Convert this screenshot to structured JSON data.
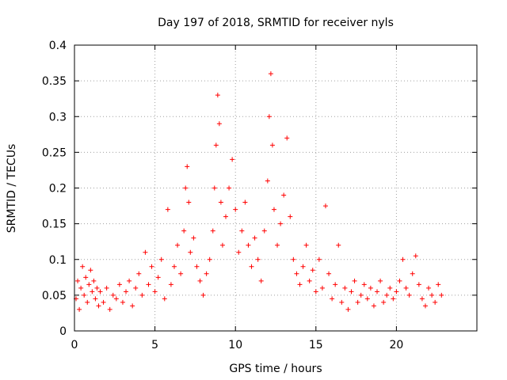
{
  "chart_data": {
    "type": "scatter",
    "title": "Day 197 of 2018, SRMTID for receiver nyls",
    "xlabel": "GPS time / hours",
    "ylabel": "SRMTID / TECUs",
    "xlim": [
      0,
      25
    ],
    "ylim": [
      0,
      0.4
    ],
    "x_ticks": [
      0,
      5,
      10,
      15,
      20
    ],
    "x_tick_labels": [
      "0",
      "5",
      "10",
      "15",
      "20"
    ],
    "y_ticks": [
      0,
      0.05,
      0.1,
      0.15,
      0.2,
      0.25,
      0.3,
      0.35,
      0.4
    ],
    "y_tick_labels": [
      "0",
      "0.05",
      "0.1",
      "0.15",
      "0.2",
      "0.25",
      "0.3",
      "0.35",
      "0.4"
    ],
    "grid": true,
    "marker": "+",
    "marker_color": "#ff0000",
    "series": [
      {
        "points": [
          [
            0.1,
            0.045
          ],
          [
            0.2,
            0.07
          ],
          [
            0.3,
            0.03
          ],
          [
            0.4,
            0.06
          ],
          [
            0.5,
            0.09
          ],
          [
            0.6,
            0.05
          ],
          [
            0.7,
            0.075
          ],
          [
            0.8,
            0.04
          ],
          [
            0.9,
            0.065
          ],
          [
            1.0,
            0.085
          ],
          [
            1.1,
            0.055
          ],
          [
            1.2,
            0.07
          ],
          [
            1.3,
            0.045
          ],
          [
            1.4,
            0.06
          ],
          [
            1.5,
            0.035
          ],
          [
            1.6,
            0.055
          ],
          [
            1.8,
            0.04
          ],
          [
            2.0,
            0.06
          ],
          [
            2.2,
            0.03
          ],
          [
            2.4,
            0.05
          ],
          [
            2.6,
            0.045
          ],
          [
            2.8,
            0.065
          ],
          [
            3.0,
            0.04
          ],
          [
            3.2,
            0.055
          ],
          [
            3.4,
            0.07
          ],
          [
            3.6,
            0.035
          ],
          [
            3.8,
            0.06
          ],
          [
            4.0,
            0.08
          ],
          [
            4.2,
            0.05
          ],
          [
            4.4,
            0.11
          ],
          [
            4.6,
            0.065
          ],
          [
            4.8,
            0.09
          ],
          [
            5.0,
            0.055
          ],
          [
            5.2,
            0.075
          ],
          [
            5.4,
            0.1
          ],
          [
            5.6,
            0.045
          ],
          [
            5.8,
            0.17
          ],
          [
            6.0,
            0.065
          ],
          [
            6.2,
            0.09
          ],
          [
            6.4,
            0.12
          ],
          [
            6.6,
            0.08
          ],
          [
            6.8,
            0.14
          ],
          [
            6.9,
            0.2
          ],
          [
            7.0,
            0.23
          ],
          [
            7.1,
            0.18
          ],
          [
            7.2,
            0.11
          ],
          [
            7.4,
            0.13
          ],
          [
            7.6,
            0.09
          ],
          [
            7.8,
            0.07
          ],
          [
            8.0,
            0.05
          ],
          [
            8.2,
            0.08
          ],
          [
            8.4,
            0.1
          ],
          [
            8.6,
            0.14
          ],
          [
            8.7,
            0.2
          ],
          [
            8.8,
            0.26
          ],
          [
            8.9,
            0.33
          ],
          [
            9.0,
            0.29
          ],
          [
            9.1,
            0.18
          ],
          [
            9.2,
            0.12
          ],
          [
            9.4,
            0.16
          ],
          [
            9.6,
            0.2
          ],
          [
            9.8,
            0.24
          ],
          [
            10.0,
            0.17
          ],
          [
            10.2,
            0.11
          ],
          [
            10.4,
            0.14
          ],
          [
            10.6,
            0.18
          ],
          [
            10.8,
            0.12
          ],
          [
            11.0,
            0.09
          ],
          [
            11.2,
            0.13
          ],
          [
            11.4,
            0.1
          ],
          [
            11.6,
            0.07
          ],
          [
            11.8,
            0.14
          ],
          [
            12.0,
            0.21
          ],
          [
            12.1,
            0.3
          ],
          [
            12.2,
            0.36
          ],
          [
            12.3,
            0.26
          ],
          [
            12.4,
            0.17
          ],
          [
            12.6,
            0.12
          ],
          [
            12.8,
            0.15
          ],
          [
            13.0,
            0.19
          ],
          [
            13.2,
            0.27
          ],
          [
            13.4,
            0.16
          ],
          [
            13.6,
            0.1
          ],
          [
            13.8,
            0.08
          ],
          [
            14.0,
            0.065
          ],
          [
            14.2,
            0.09
          ],
          [
            14.4,
            0.12
          ],
          [
            14.6,
            0.07
          ],
          [
            14.8,
            0.085
          ],
          [
            15.0,
            0.055
          ],
          [
            15.2,
            0.1
          ],
          [
            15.4,
            0.06
          ],
          [
            15.6,
            0.175
          ],
          [
            15.8,
            0.08
          ],
          [
            16.0,
            0.045
          ],
          [
            16.2,
            0.065
          ],
          [
            16.4,
            0.12
          ],
          [
            16.6,
            0.04
          ],
          [
            16.8,
            0.06
          ],
          [
            17.0,
            0.03
          ],
          [
            17.2,
            0.055
          ],
          [
            17.4,
            0.07
          ],
          [
            17.6,
            0.04
          ],
          [
            17.8,
            0.05
          ],
          [
            18.0,
            0.065
          ],
          [
            18.2,
            0.045
          ],
          [
            18.4,
            0.06
          ],
          [
            18.6,
            0.035
          ],
          [
            18.8,
            0.055
          ],
          [
            19.0,
            0.07
          ],
          [
            19.2,
            0.04
          ],
          [
            19.4,
            0.05
          ],
          [
            19.6,
            0.06
          ],
          [
            19.8,
            0.045
          ],
          [
            20.0,
            0.055
          ],
          [
            20.2,
            0.07
          ],
          [
            20.4,
            0.1
          ],
          [
            20.6,
            0.06
          ],
          [
            20.8,
            0.05
          ],
          [
            21.0,
            0.08
          ],
          [
            21.2,
            0.105
          ],
          [
            21.4,
            0.065
          ],
          [
            21.6,
            0.045
          ],
          [
            21.8,
            0.035
          ],
          [
            22.0,
            0.06
          ],
          [
            22.2,
            0.05
          ],
          [
            22.4,
            0.04
          ],
          [
            22.6,
            0.065
          ],
          [
            22.8,
            0.05
          ]
        ]
      }
    ]
  }
}
